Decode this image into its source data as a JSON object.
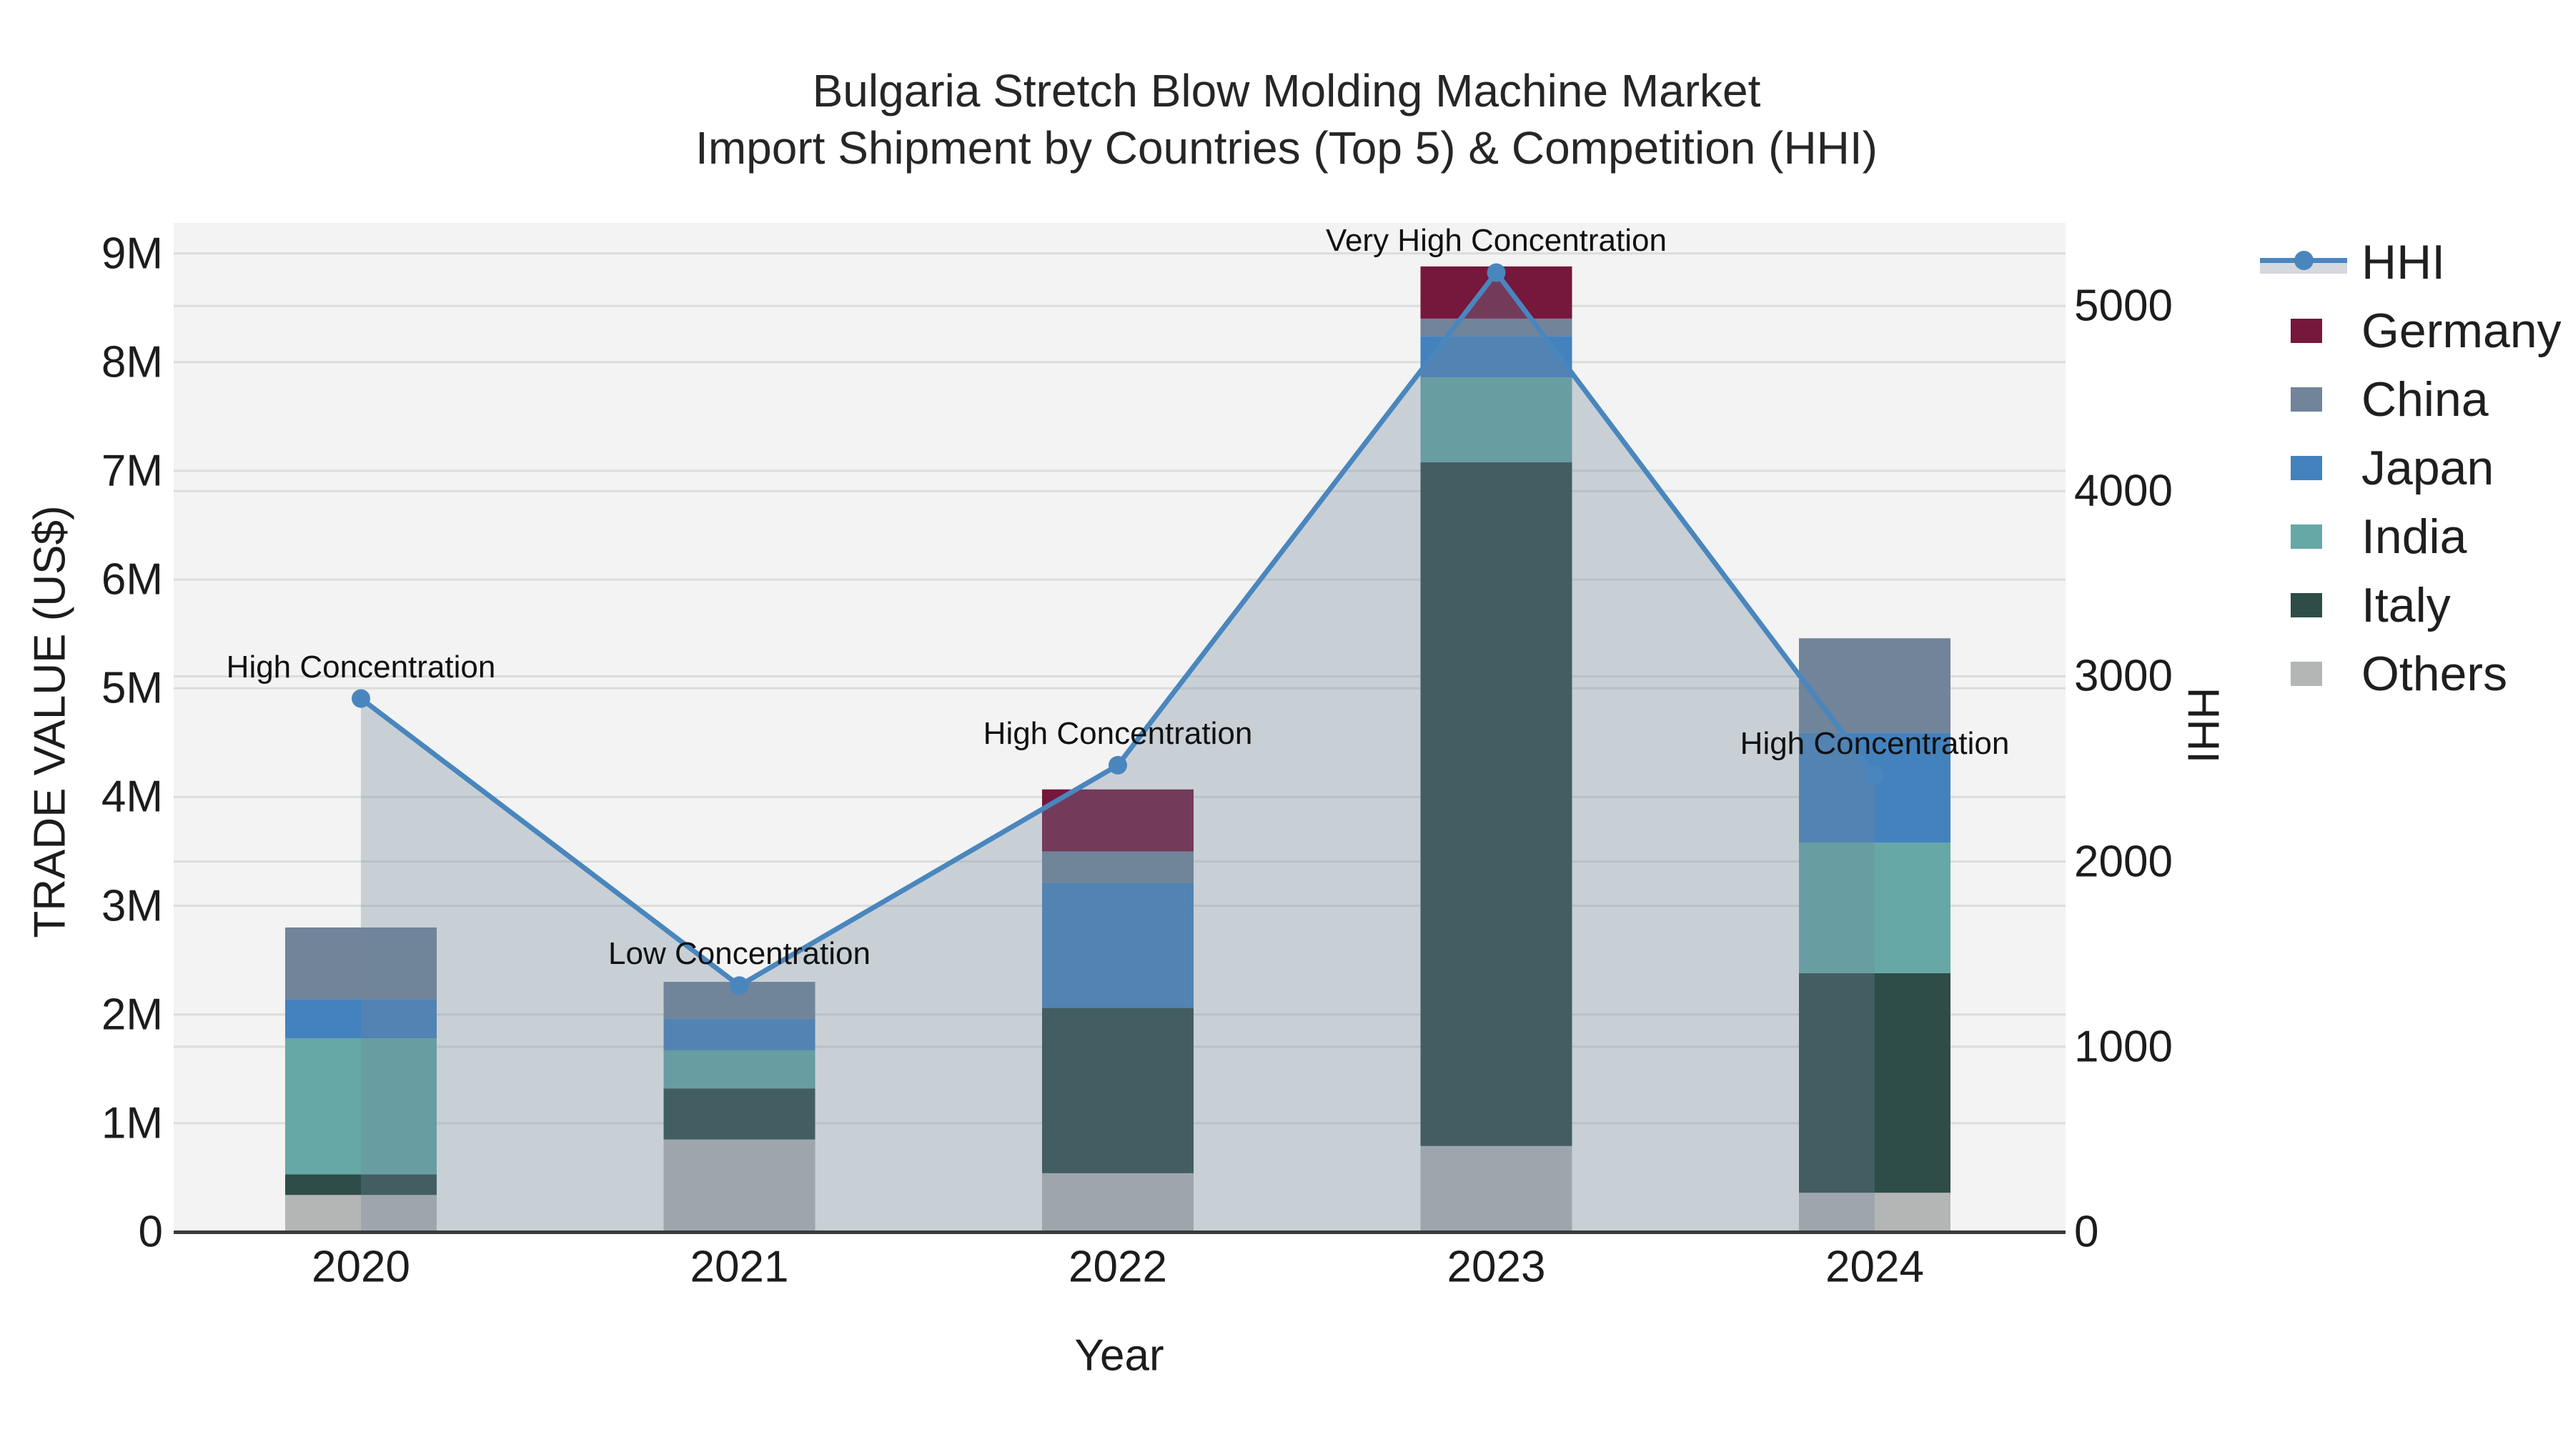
{
  "title": {
    "line1": "Bulgaria Stretch Blow Molding Machine Market",
    "line2": "Import Shipment by Countries (Top 5) & Competition (HHI)"
  },
  "axes": {
    "x": {
      "title": "Year",
      "categories": [
        "2020",
        "2021",
        "2022",
        "2023",
        "2024"
      ]
    },
    "y_left": {
      "title": "TRADE VALUE (US$)",
      "ticks": [
        {
          "label": "0",
          "value": 0
        },
        {
          "label": "1M",
          "value": 1000000
        },
        {
          "label": "2M",
          "value": 2000000
        },
        {
          "label": "3M",
          "value": 3000000
        },
        {
          "label": "4M",
          "value": 4000000
        },
        {
          "label": "5M",
          "value": 5000000
        },
        {
          "label": "6M",
          "value": 6000000
        },
        {
          "label": "7M",
          "value": 7000000
        },
        {
          "label": "8M",
          "value": 8000000
        },
        {
          "label": "9M",
          "value": 9000000
        }
      ]
    },
    "y_right": {
      "title": "HHI",
      "ticks": [
        {
          "label": "0",
          "value": 0
        },
        {
          "label": "1000",
          "value": 1000
        },
        {
          "label": "2000",
          "value": 2000
        },
        {
          "label": "3000",
          "value": 3000
        },
        {
          "label": "4000",
          "value": 4000
        },
        {
          "label": "5000",
          "value": 5000
        }
      ]
    }
  },
  "legend": {
    "items": [
      {
        "label": "HHI",
        "kind": "line",
        "color": "#4A86BE"
      },
      {
        "label": "Germany",
        "kind": "swatch",
        "color": "#76173C"
      },
      {
        "label": "China",
        "kind": "swatch",
        "color": "#71849A"
      },
      {
        "label": "Japan",
        "kind": "swatch",
        "color": "#4482BD"
      },
      {
        "label": "India",
        "kind": "swatch",
        "color": "#65A8A6"
      },
      {
        "label": "Italy",
        "kind": "swatch",
        "color": "#2E4C48"
      },
      {
        "label": "Others",
        "kind": "swatch",
        "color": "#B4B6B5"
      }
    ]
  },
  "annotations": [
    {
      "year": "2020",
      "text": "High Concentration"
    },
    {
      "year": "2021",
      "text": "Low Concentration"
    },
    {
      "year": "2022",
      "text": "High Concentration"
    },
    {
      "year": "2023",
      "text": "Very High Concentration"
    },
    {
      "year": "2024",
      "text": "High Concentration"
    }
  ],
  "colors": {
    "plot_bg": "#F2F3F2",
    "grid": "#DBDDDB",
    "axis_line": "#3B3B3B",
    "hhi_line": "#4A86BE",
    "hhi_area": "rgba(113,134,154,0.32)",
    "hhi_legend_band": "#D5D9DE"
  },
  "chart_data": {
    "type": "bar+line",
    "title": "Bulgaria Stretch Blow Molding Machine Market — Import Shipment by Countries (Top 5) & Competition (HHI)",
    "xlabel": "Year",
    "ylabel_left": "TRADE VALUE (US$)",
    "ylabel_right": "HHI",
    "categories": [
      "2020",
      "2021",
      "2022",
      "2023",
      "2024"
    ],
    "stack_order_note": "series listed bottom-to-top of stack",
    "series": [
      {
        "name": "Others",
        "color": "#B4B6B5",
        "values": [
          340000,
          850000,
          540000,
          790000,
          360000
        ]
      },
      {
        "name": "Italy",
        "color": "#2E4C48",
        "values": [
          190000,
          470000,
          1520000,
          6290000,
          2020000
        ]
      },
      {
        "name": "India",
        "color": "#65A8A6",
        "values": [
          1250000,
          350000,
          0,
          780000,
          1200000
        ]
      },
      {
        "name": "Japan",
        "color": "#4482BD",
        "values": [
          360000,
          290000,
          1150000,
          380000,
          1010000
        ]
      },
      {
        "name": "China",
        "color": "#71849A",
        "values": [
          660000,
          340000,
          290000,
          160000,
          870000
        ]
      },
      {
        "name": "Germany",
        "color": "#76173C",
        "values": [
          0,
          0,
          570000,
          480000,
          0
        ]
      }
    ],
    "bar_totals": [
      2800000,
      2300000,
      4070000,
      8880000,
      5460000
    ],
    "hhi_series": {
      "name": "HHI",
      "color": "#4A86BE",
      "values": [
        2880,
        1330,
        2520,
        5180,
        2465
      ]
    },
    "ylim_left": [
      0,
      9280000
    ],
    "ylim_right": [
      0,
      5448
    ],
    "grid": true,
    "legend_position": "right"
  }
}
